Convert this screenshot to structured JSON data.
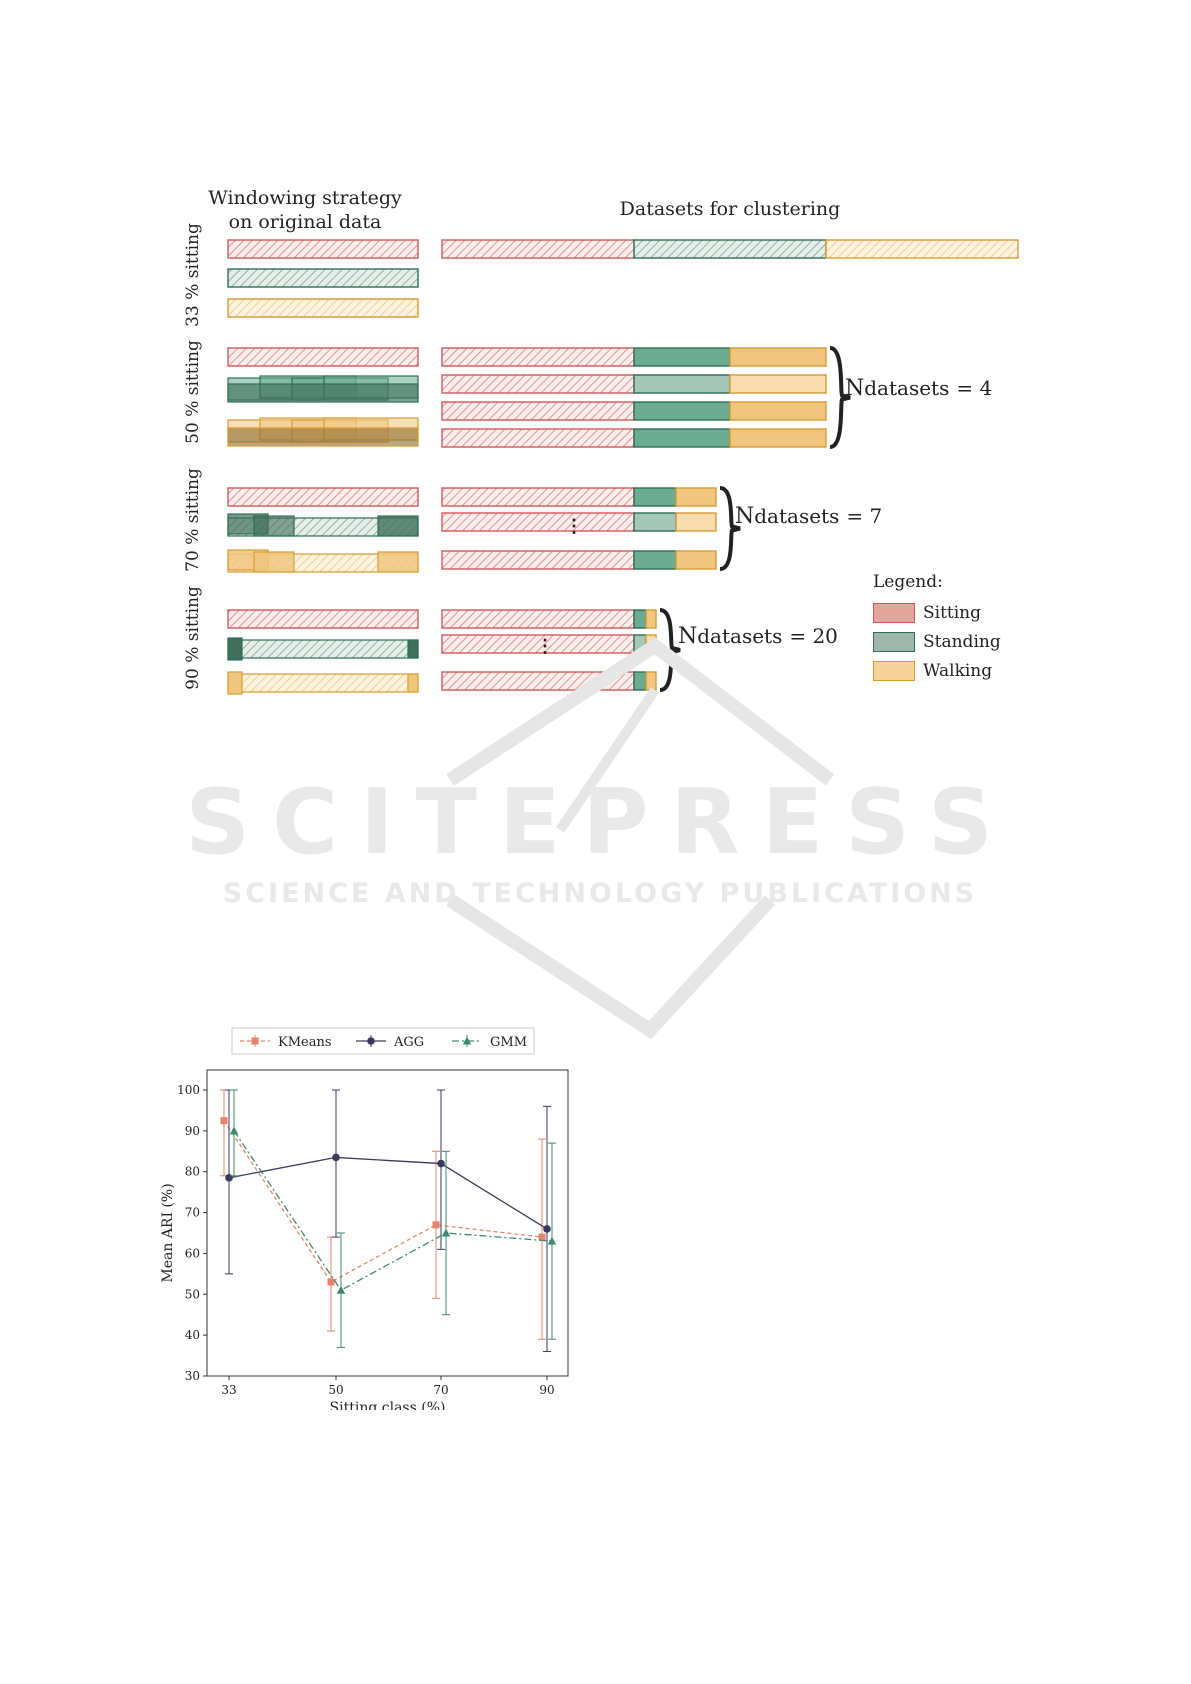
{
  "figure1": {
    "left_header": [
      "Windowing strategy",
      "on original data"
    ],
    "right_header": "Datasets for clustering",
    "rows": [
      {
        "label": "33 % sitting"
      },
      {
        "label": "50 % sitting",
        "n_label": "N",
        "n_sub": "datasets",
        "n_value": "= 4"
      },
      {
        "label": "70 % sitting",
        "n_label": "N",
        "n_sub": "datasets",
        "n_value": "= 7"
      },
      {
        "label": "90 % sitting",
        "n_label": "N",
        "n_sub": "datasets",
        "n_value": "= 20"
      }
    ],
    "ellipsis": "⋮",
    "legend_title": "Legend:",
    "legend": [
      {
        "label": "Sitting",
        "color": "#e4a59a"
      },
      {
        "label": "Standing",
        "color": "#9fb6ab"
      },
      {
        "label": "Walking",
        "color": "#f4d39a"
      }
    ],
    "colors": {
      "sitting_stroke": "#d2595a",
      "sitting_hatch": "#e07b7b",
      "standing_stroke": "#2e6e56",
      "standing_fill": "#6aab91",
      "standing_dark": "#3f6e5a",
      "walking_stroke": "#d89b33",
      "walking_fill": "#f0c67e",
      "walking_dark": "#8a6a2c"
    }
  },
  "watermark": {
    "title": "SCITEPRESS",
    "subtitle": "SCIENCE AND TECHNOLOGY PUBLICATIONS"
  },
  "chart_data": {
    "type": "line",
    "xlabel": "Sitting class (%)",
    "ylabel": "Mean ARI (%)",
    "x": [
      33,
      50,
      70,
      90
    ],
    "ylim": [
      30,
      100
    ],
    "yticks": [
      30,
      40,
      50,
      60,
      70,
      80,
      90,
      100
    ],
    "legend_position": "top",
    "series": [
      {
        "name": "KMeans",
        "color": "#e8836b",
        "marker": "square",
        "dash": "dashed",
        "values": [
          92.5,
          53,
          67,
          64
        ],
        "err_low": [
          79,
          41,
          49,
          39
        ],
        "err_high": [
          100,
          64,
          85,
          88
        ]
      },
      {
        "name": "AGG",
        "color": "#3a3a5e",
        "marker": "circle",
        "dash": "solid",
        "values": [
          78.5,
          83.5,
          82,
          66
        ],
        "err_low": [
          55,
          64,
          61,
          36
        ],
        "err_high": [
          100,
          100,
          100,
          96
        ]
      },
      {
        "name": "GMM",
        "color": "#3d8a70",
        "marker": "triangle",
        "dash": "dashdot",
        "values": [
          90,
          51,
          65,
          63
        ],
        "err_low": [
          79,
          37,
          45,
          39
        ],
        "err_high": [
          100,
          65,
          85,
          87
        ]
      }
    ]
  }
}
